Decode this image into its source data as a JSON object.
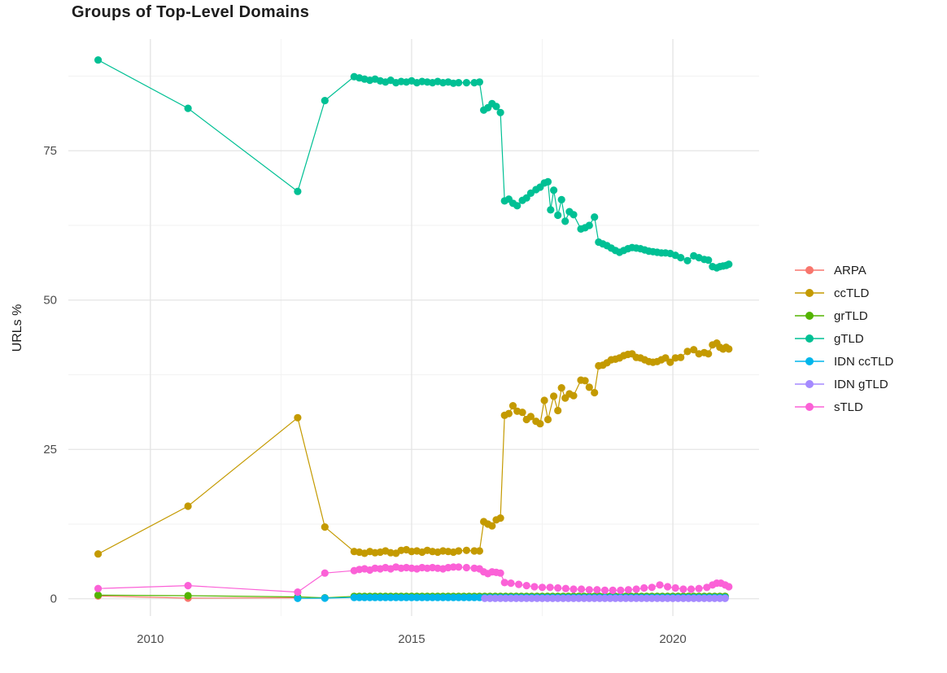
{
  "chart_data": {
    "type": "line",
    "title": "Groups of Top-Level Domains",
    "xlabel": "",
    "ylabel": "URLs %",
    "x_domain": [
      2008.43,
      2021.65
    ],
    "y_domain": [
      -2.9,
      93.7
    ],
    "x_ticks": [
      {
        "value": 2010,
        "label": "2010"
      },
      {
        "value": 2015,
        "label": "2015"
      },
      {
        "value": 2020,
        "label": "2020"
      }
    ],
    "y_ticks": [
      {
        "value": 0,
        "label": "0"
      },
      {
        "value": 25,
        "label": "25"
      },
      {
        "value": 50,
        "label": "50"
      },
      {
        "value": 75,
        "label": "75"
      }
    ],
    "x_minor": [
      2012.5,
      2017.5
    ],
    "y_minor": [
      12.5,
      37.5,
      62.5,
      87.5
    ],
    "grid": {
      "major_color": "#e4e4e4",
      "minor_color": "#f2f2f2",
      "background": "#ffffff"
    },
    "legend_position": "right",
    "series": [
      {
        "name": "ARPA",
        "color": "#F8766D",
        "points": [
          [
            2009.0,
            0.45
          ],
          [
            2010.72,
            0.1
          ],
          [
            2012.82,
            0.15
          ]
        ]
      },
      {
        "name": "ccTLD",
        "color": "#C49A00",
        "points": [
          [
            2009.0,
            7.5
          ],
          [
            2010.72,
            15.5
          ],
          [
            2012.82,
            30.3
          ],
          [
            2013.34,
            12.0
          ],
          [
            2013.9,
            7.9
          ],
          [
            2014.0,
            7.8
          ],
          [
            2014.1,
            7.6
          ],
          [
            2014.2,
            7.9
          ],
          [
            2014.3,
            7.7
          ],
          [
            2014.4,
            7.8
          ],
          [
            2014.5,
            8.0
          ],
          [
            2014.6,
            7.7
          ],
          [
            2014.7,
            7.6
          ],
          [
            2014.8,
            8.1
          ],
          [
            2014.9,
            8.2
          ],
          [
            2015.0,
            7.9
          ],
          [
            2015.1,
            8.0
          ],
          [
            2015.2,
            7.8
          ],
          [
            2015.3,
            8.1
          ],
          [
            2015.4,
            7.9
          ],
          [
            2015.5,
            7.8
          ],
          [
            2015.6,
            8.0
          ],
          [
            2015.7,
            7.9
          ],
          [
            2015.8,
            7.8
          ],
          [
            2015.9,
            8.0
          ],
          [
            2016.05,
            8.1
          ],
          [
            2016.2,
            8.0
          ],
          [
            2016.3,
            8.0
          ],
          [
            2016.38,
            12.9
          ],
          [
            2016.46,
            12.5
          ],
          [
            2016.54,
            12.2
          ],
          [
            2016.62,
            13.2
          ],
          [
            2016.7,
            13.5
          ],
          [
            2016.78,
            30.7
          ],
          [
            2016.86,
            31.0
          ],
          [
            2016.94,
            32.3
          ],
          [
            2017.02,
            31.4
          ],
          [
            2017.12,
            31.2
          ],
          [
            2017.2,
            30.0
          ],
          [
            2017.28,
            30.5
          ],
          [
            2017.38,
            29.7
          ],
          [
            2017.46,
            29.3
          ],
          [
            2017.54,
            33.2
          ],
          [
            2017.61,
            30.0
          ],
          [
            2017.72,
            33.9
          ],
          [
            2017.8,
            31.5
          ],
          [
            2017.87,
            35.3
          ],
          [
            2017.94,
            33.6
          ],
          [
            2018.02,
            34.3
          ],
          [
            2018.1,
            34.0
          ],
          [
            2018.24,
            36.6
          ],
          [
            2018.32,
            36.5
          ],
          [
            2018.4,
            35.4
          ],
          [
            2018.5,
            34.5
          ],
          [
            2018.58,
            39.0
          ],
          [
            2018.66,
            39.1
          ],
          [
            2018.74,
            39.5
          ],
          [
            2018.82,
            40.0
          ],
          [
            2018.9,
            40.1
          ],
          [
            2018.98,
            40.3
          ],
          [
            2019.06,
            40.7
          ],
          [
            2019.14,
            40.9
          ],
          [
            2019.22,
            41.0
          ],
          [
            2019.3,
            40.4
          ],
          [
            2019.38,
            40.3
          ],
          [
            2019.46,
            40.0
          ],
          [
            2019.54,
            39.7
          ],
          [
            2019.62,
            39.6
          ],
          [
            2019.7,
            39.7
          ],
          [
            2019.78,
            40.0
          ],
          [
            2019.86,
            40.3
          ],
          [
            2019.95,
            39.6
          ],
          [
            2020.05,
            40.3
          ],
          [
            2020.15,
            40.4
          ],
          [
            2020.28,
            41.4
          ],
          [
            2020.4,
            41.7
          ],
          [
            2020.5,
            41.0
          ],
          [
            2020.6,
            41.2
          ],
          [
            2020.68,
            41.0
          ],
          [
            2020.76,
            42.5
          ],
          [
            2020.84,
            42.8
          ],
          [
            2020.9,
            42.1
          ],
          [
            2020.96,
            41.8
          ],
          [
            2021.02,
            42.1
          ],
          [
            2021.07,
            41.8
          ]
        ]
      },
      {
        "name": "grTLD",
        "color": "#53B400",
        "points": [
          [
            2009.0,
            0.6
          ],
          [
            2010.72,
            0.5
          ],
          [
            2012.82,
            0.3
          ],
          [
            2013.34,
            0.15
          ]
        ],
        "run": {
          "from": 2013.9,
          "to": 2021.07,
          "step": 0.1,
          "value": 0.4
        }
      },
      {
        "name": "gTLD",
        "color": "#00C094",
        "points": [
          [
            2009.0,
            90.2
          ],
          [
            2010.72,
            82.1
          ],
          [
            2012.82,
            68.2
          ],
          [
            2013.34,
            83.4
          ],
          [
            2013.9,
            87.4
          ],
          [
            2014.0,
            87.2
          ],
          [
            2014.1,
            87.0
          ],
          [
            2014.2,
            86.8
          ],
          [
            2014.3,
            87.0
          ],
          [
            2014.4,
            86.7
          ],
          [
            2014.5,
            86.5
          ],
          [
            2014.6,
            86.8
          ],
          [
            2014.7,
            86.4
          ],
          [
            2014.8,
            86.6
          ],
          [
            2014.9,
            86.5
          ],
          [
            2015.0,
            86.7
          ],
          [
            2015.1,
            86.4
          ],
          [
            2015.2,
            86.6
          ],
          [
            2015.3,
            86.5
          ],
          [
            2015.4,
            86.4
          ],
          [
            2015.5,
            86.6
          ],
          [
            2015.6,
            86.4
          ],
          [
            2015.7,
            86.5
          ],
          [
            2015.8,
            86.3
          ],
          [
            2015.9,
            86.4
          ],
          [
            2016.05,
            86.4
          ],
          [
            2016.2,
            86.4
          ],
          [
            2016.3,
            86.5
          ],
          [
            2016.38,
            81.8
          ],
          [
            2016.46,
            82.2
          ],
          [
            2016.54,
            82.9
          ],
          [
            2016.62,
            82.4
          ],
          [
            2016.7,
            81.4
          ],
          [
            2016.78,
            66.6
          ],
          [
            2016.86,
            66.9
          ],
          [
            2016.94,
            66.2
          ],
          [
            2017.02,
            65.8
          ],
          [
            2017.12,
            66.7
          ],
          [
            2017.2,
            67.1
          ],
          [
            2017.28,
            67.9
          ],
          [
            2017.38,
            68.5
          ],
          [
            2017.46,
            68.9
          ],
          [
            2017.54,
            69.6
          ],
          [
            2017.61,
            69.8
          ],
          [
            2017.66,
            65.1
          ],
          [
            2017.72,
            68.4
          ],
          [
            2017.8,
            64.2
          ],
          [
            2017.87,
            66.8
          ],
          [
            2017.94,
            63.2
          ],
          [
            2018.02,
            64.8
          ],
          [
            2018.1,
            64.3
          ],
          [
            2018.24,
            61.9
          ],
          [
            2018.32,
            62.1
          ],
          [
            2018.4,
            62.5
          ],
          [
            2018.5,
            63.9
          ],
          [
            2018.58,
            59.7
          ],
          [
            2018.66,
            59.4
          ],
          [
            2018.74,
            59.1
          ],
          [
            2018.82,
            58.7
          ],
          [
            2018.9,
            58.3
          ],
          [
            2018.98,
            58.0
          ],
          [
            2019.06,
            58.3
          ],
          [
            2019.14,
            58.6
          ],
          [
            2019.22,
            58.8
          ],
          [
            2019.3,
            58.7
          ],
          [
            2019.38,
            58.6
          ],
          [
            2019.46,
            58.4
          ],
          [
            2019.54,
            58.2
          ],
          [
            2019.62,
            58.1
          ],
          [
            2019.7,
            58.0
          ],
          [
            2019.78,
            57.9
          ],
          [
            2019.86,
            57.9
          ],
          [
            2019.95,
            57.8
          ],
          [
            2020.05,
            57.5
          ],
          [
            2020.15,
            57.1
          ],
          [
            2020.28,
            56.6
          ],
          [
            2020.4,
            57.4
          ],
          [
            2020.5,
            57.1
          ],
          [
            2020.6,
            56.8
          ],
          [
            2020.68,
            56.7
          ],
          [
            2020.76,
            55.6
          ],
          [
            2020.84,
            55.4
          ],
          [
            2020.9,
            55.6
          ],
          [
            2020.96,
            55.7
          ],
          [
            2021.02,
            55.8
          ],
          [
            2021.07,
            56.0
          ]
        ]
      },
      {
        "name": "IDN ccTLD",
        "color": "#00B6EB",
        "points": [
          [
            2012.82,
            0.05
          ],
          [
            2013.34,
            0.1
          ]
        ],
        "run": {
          "from": 2013.9,
          "to": 2021.07,
          "step": 0.1,
          "value": 0.2
        }
      },
      {
        "name": "IDN gTLD",
        "color": "#A58AFF",
        "points": [],
        "run": {
          "from": 2016.4,
          "to": 2021.07,
          "step": 0.1,
          "value": 0.05
        }
      },
      {
        "name": "sTLD",
        "color": "#FB61D7",
        "points": [
          [
            2009.0,
            1.7
          ],
          [
            2010.72,
            2.2
          ],
          [
            2012.82,
            1.1
          ],
          [
            2013.34,
            4.3
          ],
          [
            2013.9,
            4.7
          ],
          [
            2014.0,
            4.9
          ],
          [
            2014.1,
            5.0
          ],
          [
            2014.2,
            4.8
          ],
          [
            2014.3,
            5.1
          ],
          [
            2014.4,
            5.0
          ],
          [
            2014.5,
            5.2
          ],
          [
            2014.6,
            5.0
          ],
          [
            2014.7,
            5.3
          ],
          [
            2014.8,
            5.1
          ],
          [
            2014.9,
            5.2
          ],
          [
            2015.0,
            5.1
          ],
          [
            2015.1,
            5.0
          ],
          [
            2015.2,
            5.2
          ],
          [
            2015.3,
            5.1
          ],
          [
            2015.4,
            5.2
          ],
          [
            2015.5,
            5.1
          ],
          [
            2015.6,
            5.0
          ],
          [
            2015.7,
            5.2
          ],
          [
            2015.8,
            5.3
          ],
          [
            2015.9,
            5.3
          ],
          [
            2016.05,
            5.2
          ],
          [
            2016.2,
            5.1
          ],
          [
            2016.3,
            5.0
          ],
          [
            2016.38,
            4.5
          ],
          [
            2016.46,
            4.2
          ],
          [
            2016.54,
            4.5
          ],
          [
            2016.62,
            4.4
          ],
          [
            2016.7,
            4.3
          ],
          [
            2016.78,
            2.7
          ],
          [
            2016.9,
            2.6
          ],
          [
            2017.05,
            2.4
          ],
          [
            2017.2,
            2.2
          ],
          [
            2017.35,
            2.0
          ],
          [
            2017.5,
            1.9
          ],
          [
            2017.65,
            1.9
          ],
          [
            2017.8,
            1.8
          ],
          [
            2017.95,
            1.7
          ],
          [
            2018.1,
            1.6
          ],
          [
            2018.25,
            1.6
          ],
          [
            2018.4,
            1.5
          ],
          [
            2018.55,
            1.5
          ],
          [
            2018.7,
            1.4
          ],
          [
            2018.85,
            1.4
          ],
          [
            2019.0,
            1.4
          ],
          [
            2019.15,
            1.5
          ],
          [
            2019.3,
            1.6
          ],
          [
            2019.45,
            1.8
          ],
          [
            2019.6,
            1.9
          ],
          [
            2019.75,
            2.3
          ],
          [
            2019.9,
            2.0
          ],
          [
            2020.05,
            1.8
          ],
          [
            2020.2,
            1.6
          ],
          [
            2020.35,
            1.6
          ],
          [
            2020.5,
            1.7
          ],
          [
            2020.65,
            1.9
          ],
          [
            2020.76,
            2.3
          ],
          [
            2020.84,
            2.6
          ],
          [
            2020.92,
            2.6
          ],
          [
            2021.0,
            2.3
          ],
          [
            2021.07,
            2.0
          ]
        ]
      }
    ]
  }
}
